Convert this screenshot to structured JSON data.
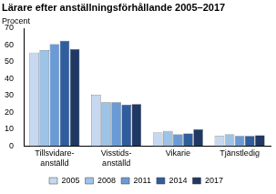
{
  "chart_data": {
    "type": "bar",
    "title": "Lärare efter anställningsförhållande 2005–2017",
    "y_label": "Procent",
    "categories": [
      [
        "Tillsvidare-",
        "anställd"
      ],
      [
        "Visstids-",
        "anställd"
      ],
      "Vikarie",
      "Tjänstledig"
    ],
    "series": [
      {
        "name": "2005",
        "color": "#c6d9f1",
        "values": [
          55.5,
          30.5,
          8,
          6
        ]
      },
      {
        "name": "2008",
        "color": "#9dc3e6",
        "values": [
          57,
          26,
          9,
          7
        ]
      },
      {
        "name": "2011",
        "color": "#6a9bd6",
        "values": [
          60.5,
          26,
          7,
          6
        ]
      },
      {
        "name": "2014",
        "color": "#2f5d9e",
        "values": [
          62.5,
          24.5,
          7.5,
          6
        ]
      },
      {
        "name": "2017",
        "color": "#1f3864",
        "values": [
          57.5,
          25,
          10,
          6.5
        ]
      }
    ],
    "ylim": [
      0,
      70
    ],
    "yticks": [
      0,
      10,
      20,
      30,
      40,
      50,
      60,
      70
    ],
    "grid": false,
    "legend": "bottom"
  }
}
